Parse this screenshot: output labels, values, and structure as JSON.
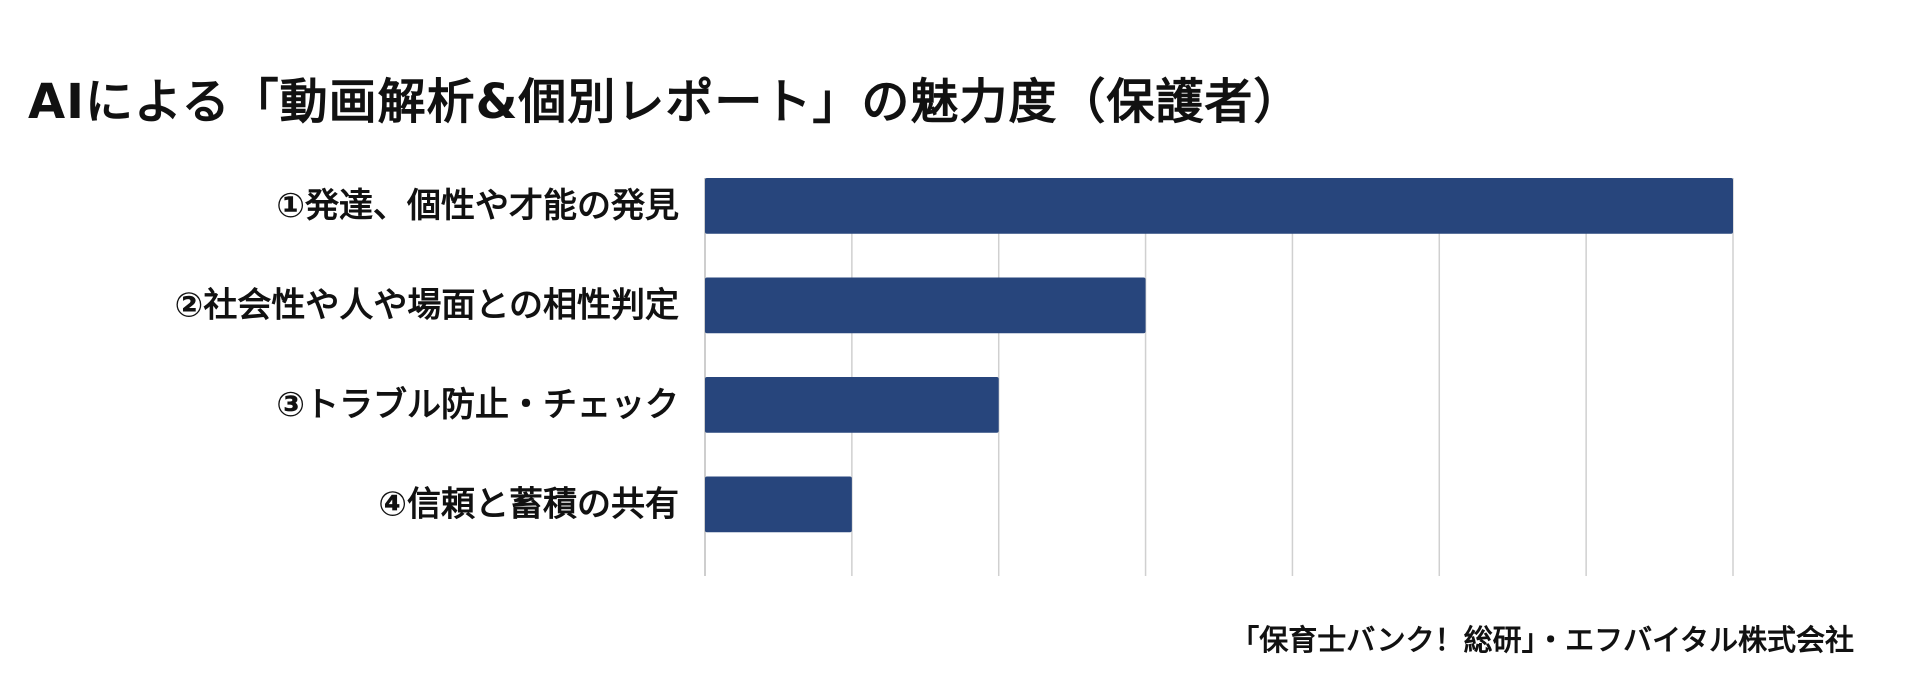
{
  "chart_data": {
    "type": "bar",
    "orientation": "horizontal",
    "title": "AIによる「動画解析&個別レポート」の魅力度（保護者）",
    "categories": [
      "①発達、個性や才能の発見",
      "②社会性や人や場面との相性判定",
      "③トラブル防止・チェック",
      "④信頼と蓄積の共有"
    ],
    "values": [
      7,
      3,
      2,
      1
    ],
    "xlim": [
      0,
      7
    ],
    "grid": "vertical",
    "bar_color": "#27457c",
    "grid_color": "#d0d0d0"
  },
  "source": "「保育士バンク！総研」・エフバイタル株式会社"
}
